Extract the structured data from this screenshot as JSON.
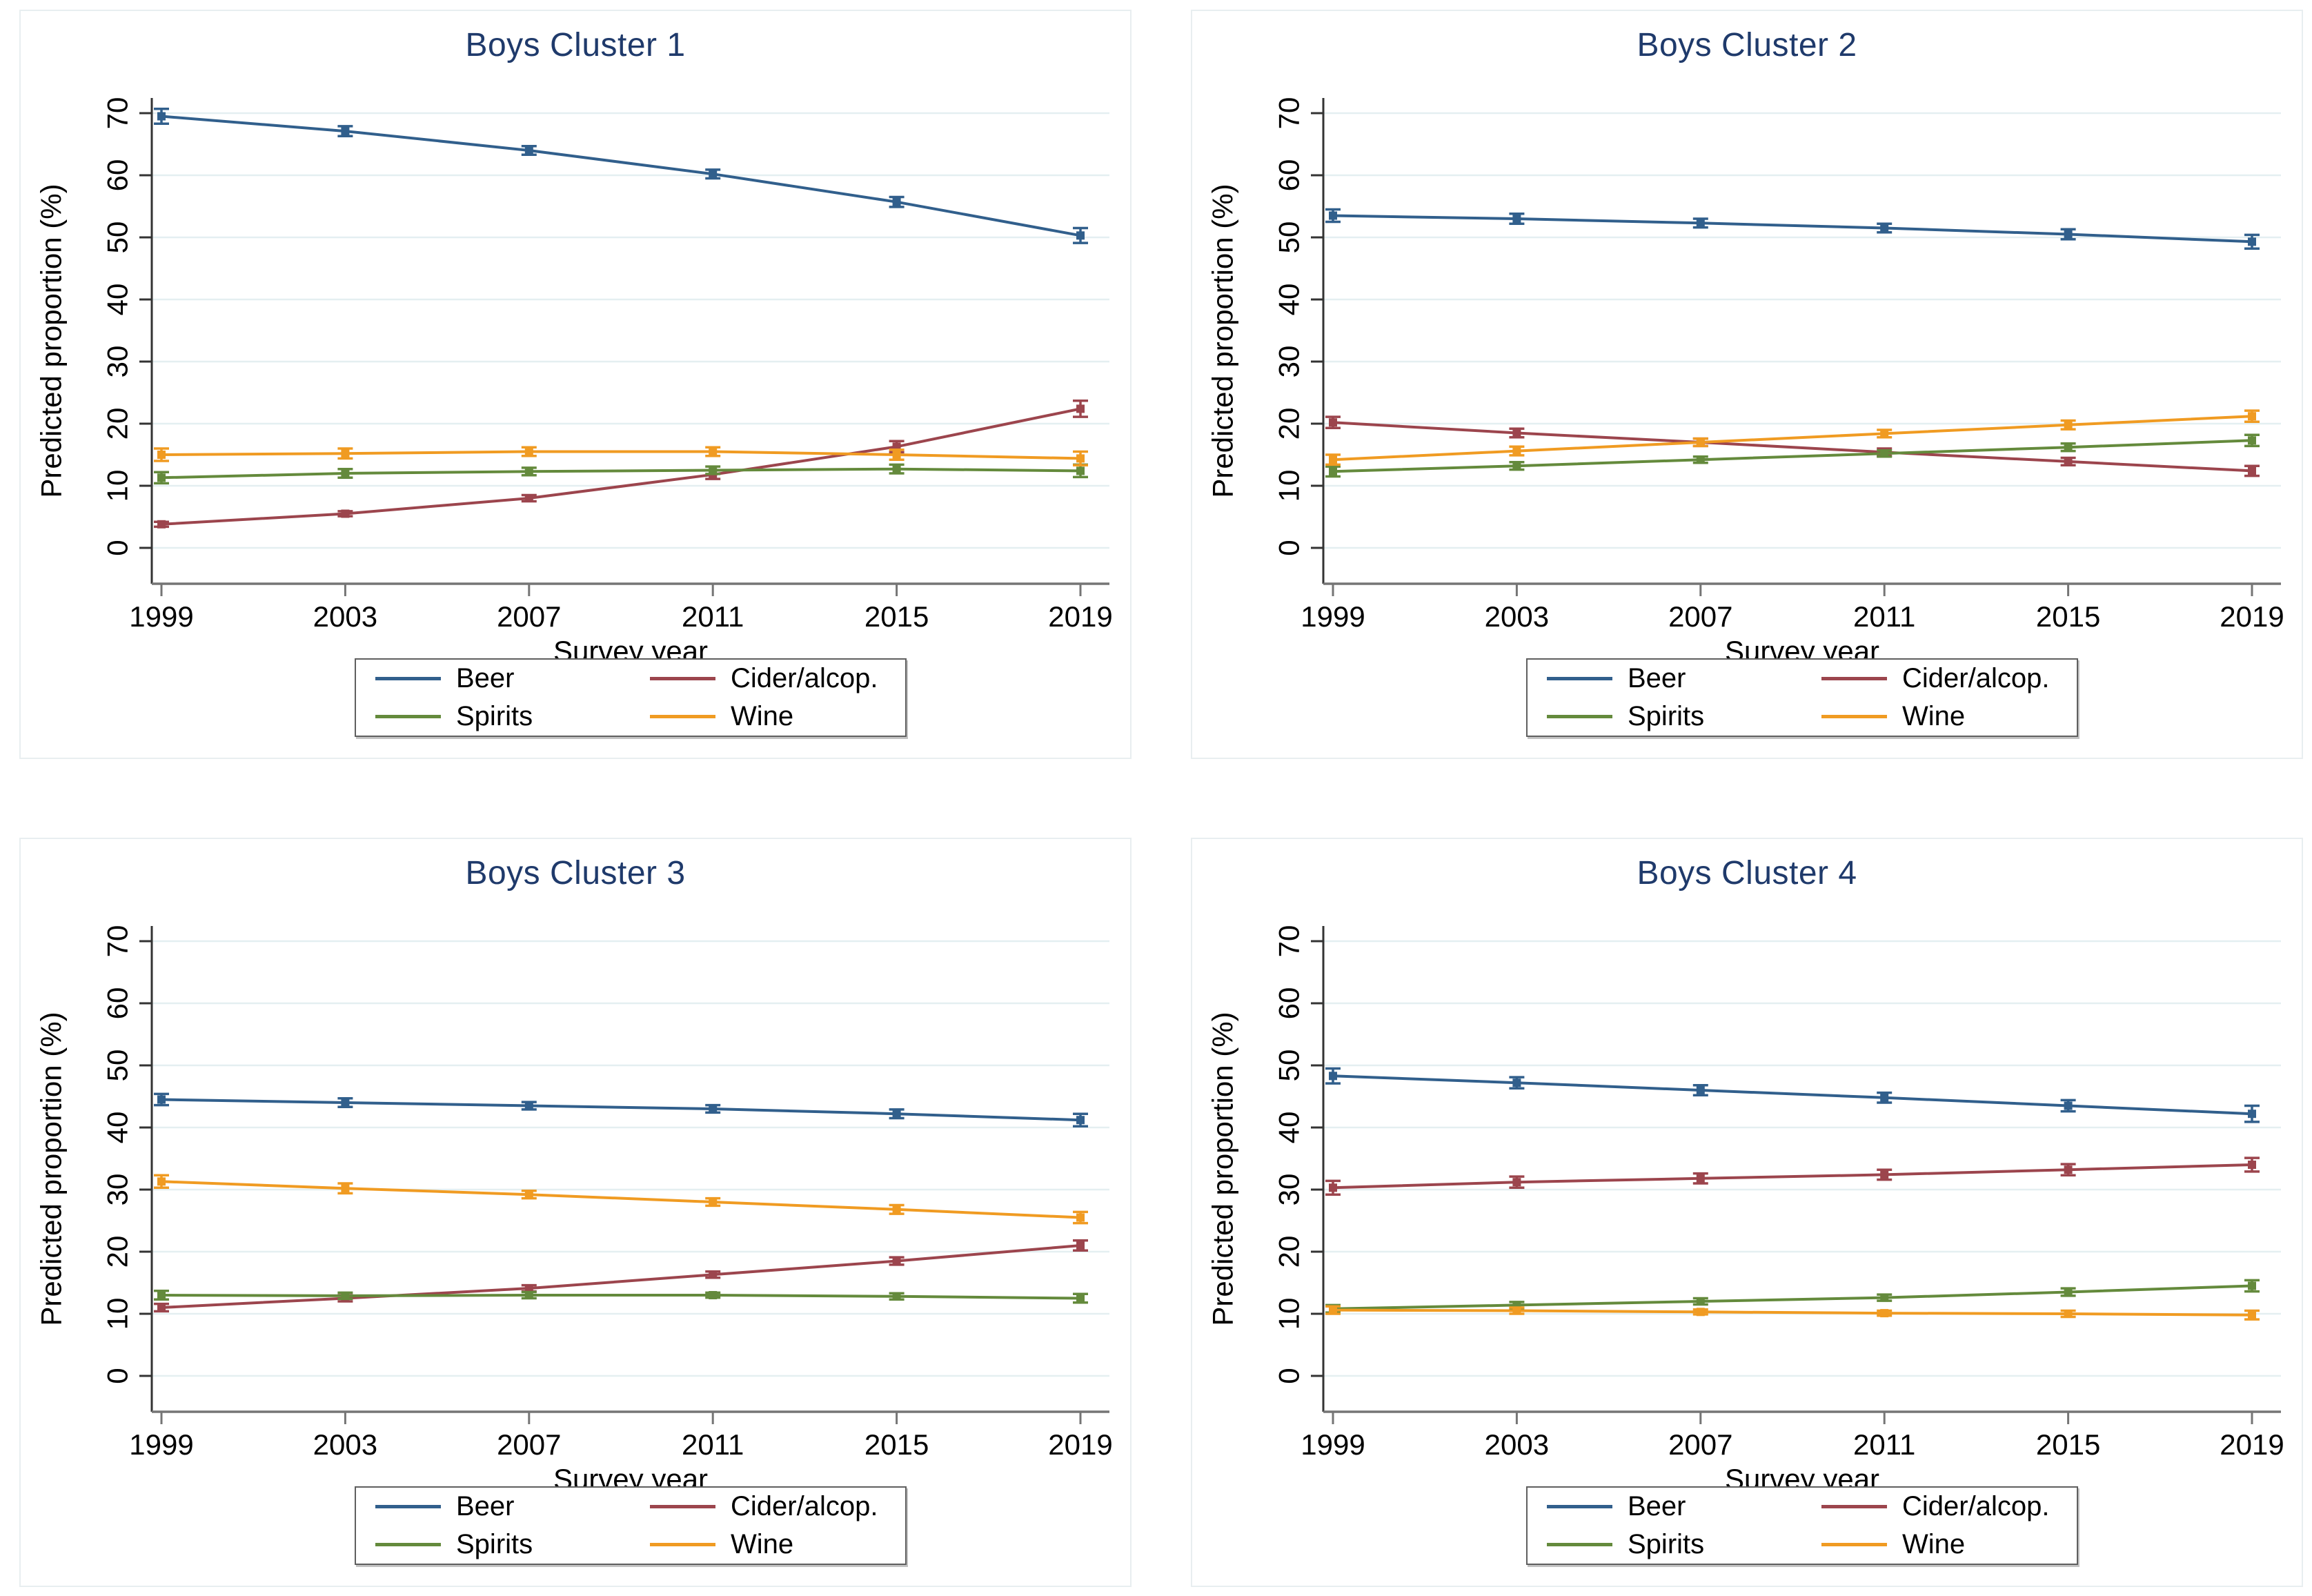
{
  "figure": {
    "xlabel": "Survey year",
    "ylabel": "Predicted proportion (%)",
    "title_color": "#1f3a6b",
    "grid_color": "#e4eff1",
    "y_axis_color": "#333333",
    "x_axis_color": "#757575",
    "background": "#ffffff"
  },
  "chart_data": [
    {
      "type": "line",
      "title": "Boys Cluster 1",
      "xlabel": "Survey year",
      "ylabel": "Predicted proportion (%)",
      "x": [
        1999,
        2003,
        2007,
        2011,
        2015,
        2019
      ],
      "ylim": [
        0,
        70
      ],
      "yticks": [
        0,
        10,
        20,
        30,
        40,
        50,
        60,
        70
      ],
      "grid": true,
      "legend_position": "below",
      "series": [
        {
          "name": "Beer",
          "color": "#315f8c",
          "values": [
            69.5,
            67.1,
            64.0,
            60.2,
            55.7,
            50.3
          ],
          "errors": [
            1.2,
            0.8,
            0.7,
            0.7,
            0.8,
            1.2
          ]
        },
        {
          "name": "Cider/alcop.",
          "color": "#9c454d",
          "values": [
            3.8,
            5.5,
            8.0,
            11.8,
            16.3,
            22.4
          ],
          "errors": [
            0.4,
            0.4,
            0.5,
            0.7,
            0.9,
            1.3
          ]
        },
        {
          "name": "Spirits",
          "color": "#648a3c",
          "values": [
            11.3,
            12.0,
            12.3,
            12.5,
            12.7,
            12.4
          ],
          "errors": [
            0.9,
            0.7,
            0.6,
            0.6,
            0.7,
            1.0
          ]
        },
        {
          "name": "Wine",
          "color": "#f09b22",
          "values": [
            15.0,
            15.2,
            15.5,
            15.5,
            15.0,
            14.4
          ],
          "errors": [
            1.0,
            0.8,
            0.7,
            0.7,
            0.8,
            1.1
          ]
        }
      ]
    },
    {
      "type": "line",
      "title": "Boys Cluster 2",
      "xlabel": "Survey year",
      "ylabel": "Predicted proportion (%)",
      "x": [
        1999,
        2003,
        2007,
        2011,
        2015,
        2019
      ],
      "ylim": [
        0,
        70
      ],
      "yticks": [
        0,
        10,
        20,
        30,
        40,
        50,
        60,
        70
      ],
      "grid": true,
      "legend_position": "below",
      "series": [
        {
          "name": "Beer",
          "color": "#315f8c",
          "values": [
            53.5,
            53.0,
            52.3,
            51.5,
            50.5,
            49.3
          ],
          "errors": [
            1.0,
            0.8,
            0.7,
            0.7,
            0.8,
            1.1
          ]
        },
        {
          "name": "Cider/alcop.",
          "color": "#9c454d",
          "values": [
            20.2,
            18.5,
            17.0,
            15.4,
            13.9,
            12.4
          ],
          "errors": [
            0.9,
            0.7,
            0.6,
            0.6,
            0.6,
            0.8
          ]
        },
        {
          "name": "Spirits",
          "color": "#648a3c",
          "values": [
            12.3,
            13.2,
            14.2,
            15.2,
            16.2,
            17.3
          ],
          "errors": [
            0.8,
            0.6,
            0.5,
            0.5,
            0.6,
            0.9
          ]
        },
        {
          "name": "Wine",
          "color": "#f09b22",
          "values": [
            14.2,
            15.6,
            17.0,
            18.4,
            19.8,
            21.2
          ],
          "errors": [
            0.8,
            0.7,
            0.6,
            0.6,
            0.7,
            0.9
          ]
        }
      ]
    },
    {
      "type": "line",
      "title": "Boys Cluster 3",
      "xlabel": "Survey year",
      "ylabel": "Predicted proportion (%)",
      "x": [
        1999,
        2003,
        2007,
        2011,
        2015,
        2019
      ],
      "ylim": [
        0,
        70
      ],
      "yticks": [
        0,
        10,
        20,
        30,
        40,
        50,
        60,
        70
      ],
      "grid": true,
      "legend_position": "below",
      "series": [
        {
          "name": "Beer",
          "color": "#315f8c",
          "values": [
            44.5,
            44.0,
            43.5,
            43.0,
            42.2,
            41.2
          ],
          "errors": [
            0.9,
            0.7,
            0.6,
            0.6,
            0.7,
            1.0
          ]
        },
        {
          "name": "Cider/alcop.",
          "color": "#9c454d",
          "values": [
            11.0,
            12.5,
            14.1,
            16.3,
            18.5,
            21.0
          ],
          "errors": [
            0.6,
            0.5,
            0.5,
            0.5,
            0.6,
            0.8
          ]
        },
        {
          "name": "Spirits",
          "color": "#648a3c",
          "values": [
            13.0,
            12.9,
            13.0,
            13.0,
            12.8,
            12.5
          ],
          "errors": [
            0.7,
            0.5,
            0.5,
            0.4,
            0.5,
            0.7
          ]
        },
        {
          "name": "Wine",
          "color": "#f09b22",
          "values": [
            31.3,
            30.2,
            29.2,
            28.0,
            26.8,
            25.5
          ],
          "errors": [
            1.0,
            0.8,
            0.6,
            0.6,
            0.7,
            0.9
          ]
        }
      ]
    },
    {
      "type": "line",
      "title": "Boys Cluster 4",
      "xlabel": "Survey year",
      "ylabel": "Predicted proportion (%)",
      "x": [
        1999,
        2003,
        2007,
        2011,
        2015,
        2019
      ],
      "ylim": [
        0,
        70
      ],
      "yticks": [
        0,
        10,
        20,
        30,
        40,
        50,
        60,
        70
      ],
      "grid": true,
      "legend_position": "below",
      "series": [
        {
          "name": "Beer",
          "color": "#315f8c",
          "values": [
            48.3,
            47.2,
            46.0,
            44.8,
            43.5,
            42.2
          ],
          "errors": [
            1.2,
            0.9,
            0.8,
            0.8,
            0.9,
            1.3
          ]
        },
        {
          "name": "Cider/alcop.",
          "color": "#9c454d",
          "values": [
            30.3,
            31.2,
            31.8,
            32.4,
            33.2,
            34.0
          ],
          "errors": [
            1.1,
            0.9,
            0.8,
            0.8,
            0.9,
            1.1
          ]
        },
        {
          "name": "Spirits",
          "color": "#648a3c",
          "values": [
            10.8,
            11.4,
            12.0,
            12.6,
            13.5,
            14.5
          ],
          "errors": [
            0.6,
            0.5,
            0.5,
            0.5,
            0.6,
            0.9
          ]
        },
        {
          "name": "Wine",
          "color": "#f09b22",
          "values": [
            10.6,
            10.5,
            10.3,
            10.1,
            10.0,
            9.8
          ],
          "errors": [
            0.6,
            0.5,
            0.4,
            0.4,
            0.5,
            0.7
          ]
        }
      ]
    }
  ]
}
